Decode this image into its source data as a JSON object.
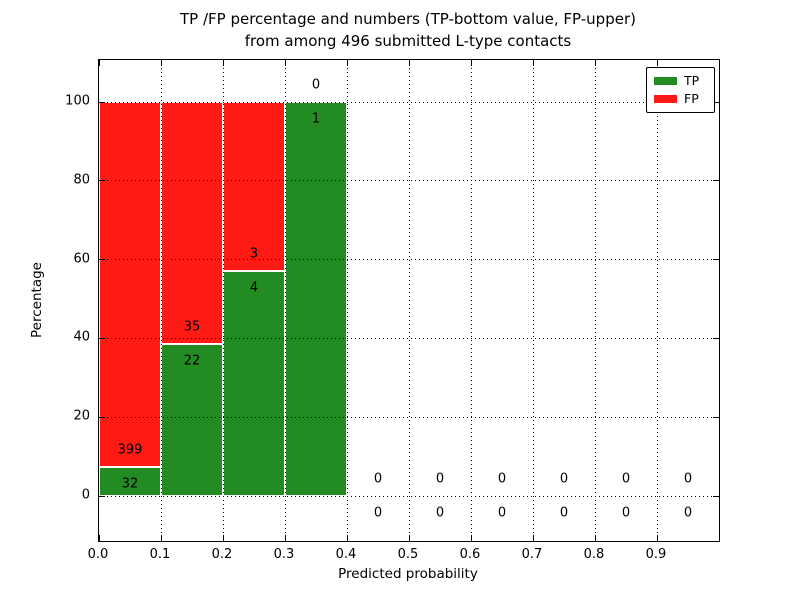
{
  "title": {
    "line1": "TP /FP percentage and numbers (TP-bottom value, FP-upper)",
    "line2": "from among 496 submitted L-type contacts"
  },
  "axes": {
    "xlabel": "Predicted probability",
    "ylabel": "Percentage"
  },
  "legend": {
    "items": [
      {
        "label": "TP",
        "color": "#228b22"
      },
      {
        "label": "FP",
        "color": "#ff1a14"
      }
    ]
  },
  "chart_data": {
    "type": "bar",
    "subtype": "stacked-percentage-histogram",
    "title": "TP /FP percentage and numbers (TP-bottom value, FP-upper) from among 496 submitted L-type contacts",
    "xlabel": "Predicted probability",
    "ylabel": "Percentage",
    "total_submitted": 496,
    "bin_width": 0.1,
    "xlim": [
      0.0,
      1.0
    ],
    "ylim": [
      -11,
      111
    ],
    "xticks": [
      "0.0",
      "0.1",
      "0.2",
      "0.3",
      "0.4",
      "0.5",
      "0.6",
      "0.7",
      "0.8",
      "0.9"
    ],
    "yticks": [
      0,
      20,
      40,
      60,
      80,
      100
    ],
    "grid": "dotted",
    "legend_position": "upper-right",
    "colors": {
      "tp": "#228b22",
      "fp": "#ff1a14"
    },
    "label_convention": "TP count below boundary, FP count above boundary",
    "bins": [
      {
        "range": [
          0.0,
          0.1
        ],
        "tp": 32,
        "fp": 399,
        "tp_pct": 7.4,
        "fp_pct": 92.6
      },
      {
        "range": [
          0.1,
          0.2
        ],
        "tp": 22,
        "fp": 35,
        "tp_pct": 38.6,
        "fp_pct": 61.4
      },
      {
        "range": [
          0.2,
          0.3
        ],
        "tp": 4,
        "fp": 3,
        "tp_pct": 57.1,
        "fp_pct": 42.9
      },
      {
        "range": [
          0.3,
          0.4
        ],
        "tp": 1,
        "fp": 0,
        "tp_pct": 100.0,
        "fp_pct": 0.0
      },
      {
        "range": [
          0.4,
          0.5
        ],
        "tp": 0,
        "fp": 0
      },
      {
        "range": [
          0.5,
          0.6
        ],
        "tp": 0,
        "fp": 0
      },
      {
        "range": [
          0.6,
          0.7
        ],
        "tp": 0,
        "fp": 0
      },
      {
        "range": [
          0.7,
          0.8
        ],
        "tp": 0,
        "fp": 0
      },
      {
        "range": [
          0.8,
          0.9
        ],
        "tp": 0,
        "fp": 0
      },
      {
        "range": [
          0.9,
          1.0
        ],
        "tp": 0,
        "fp": 0
      }
    ],
    "series": [
      {
        "name": "TP",
        "color": "#228b22",
        "values": [
          32,
          22,
          4,
          1,
          0,
          0,
          0,
          0,
          0,
          0
        ]
      },
      {
        "name": "FP",
        "color": "#ff1a14",
        "values": [
          399,
          35,
          3,
          0,
          0,
          0,
          0,
          0,
          0,
          0
        ]
      }
    ]
  }
}
